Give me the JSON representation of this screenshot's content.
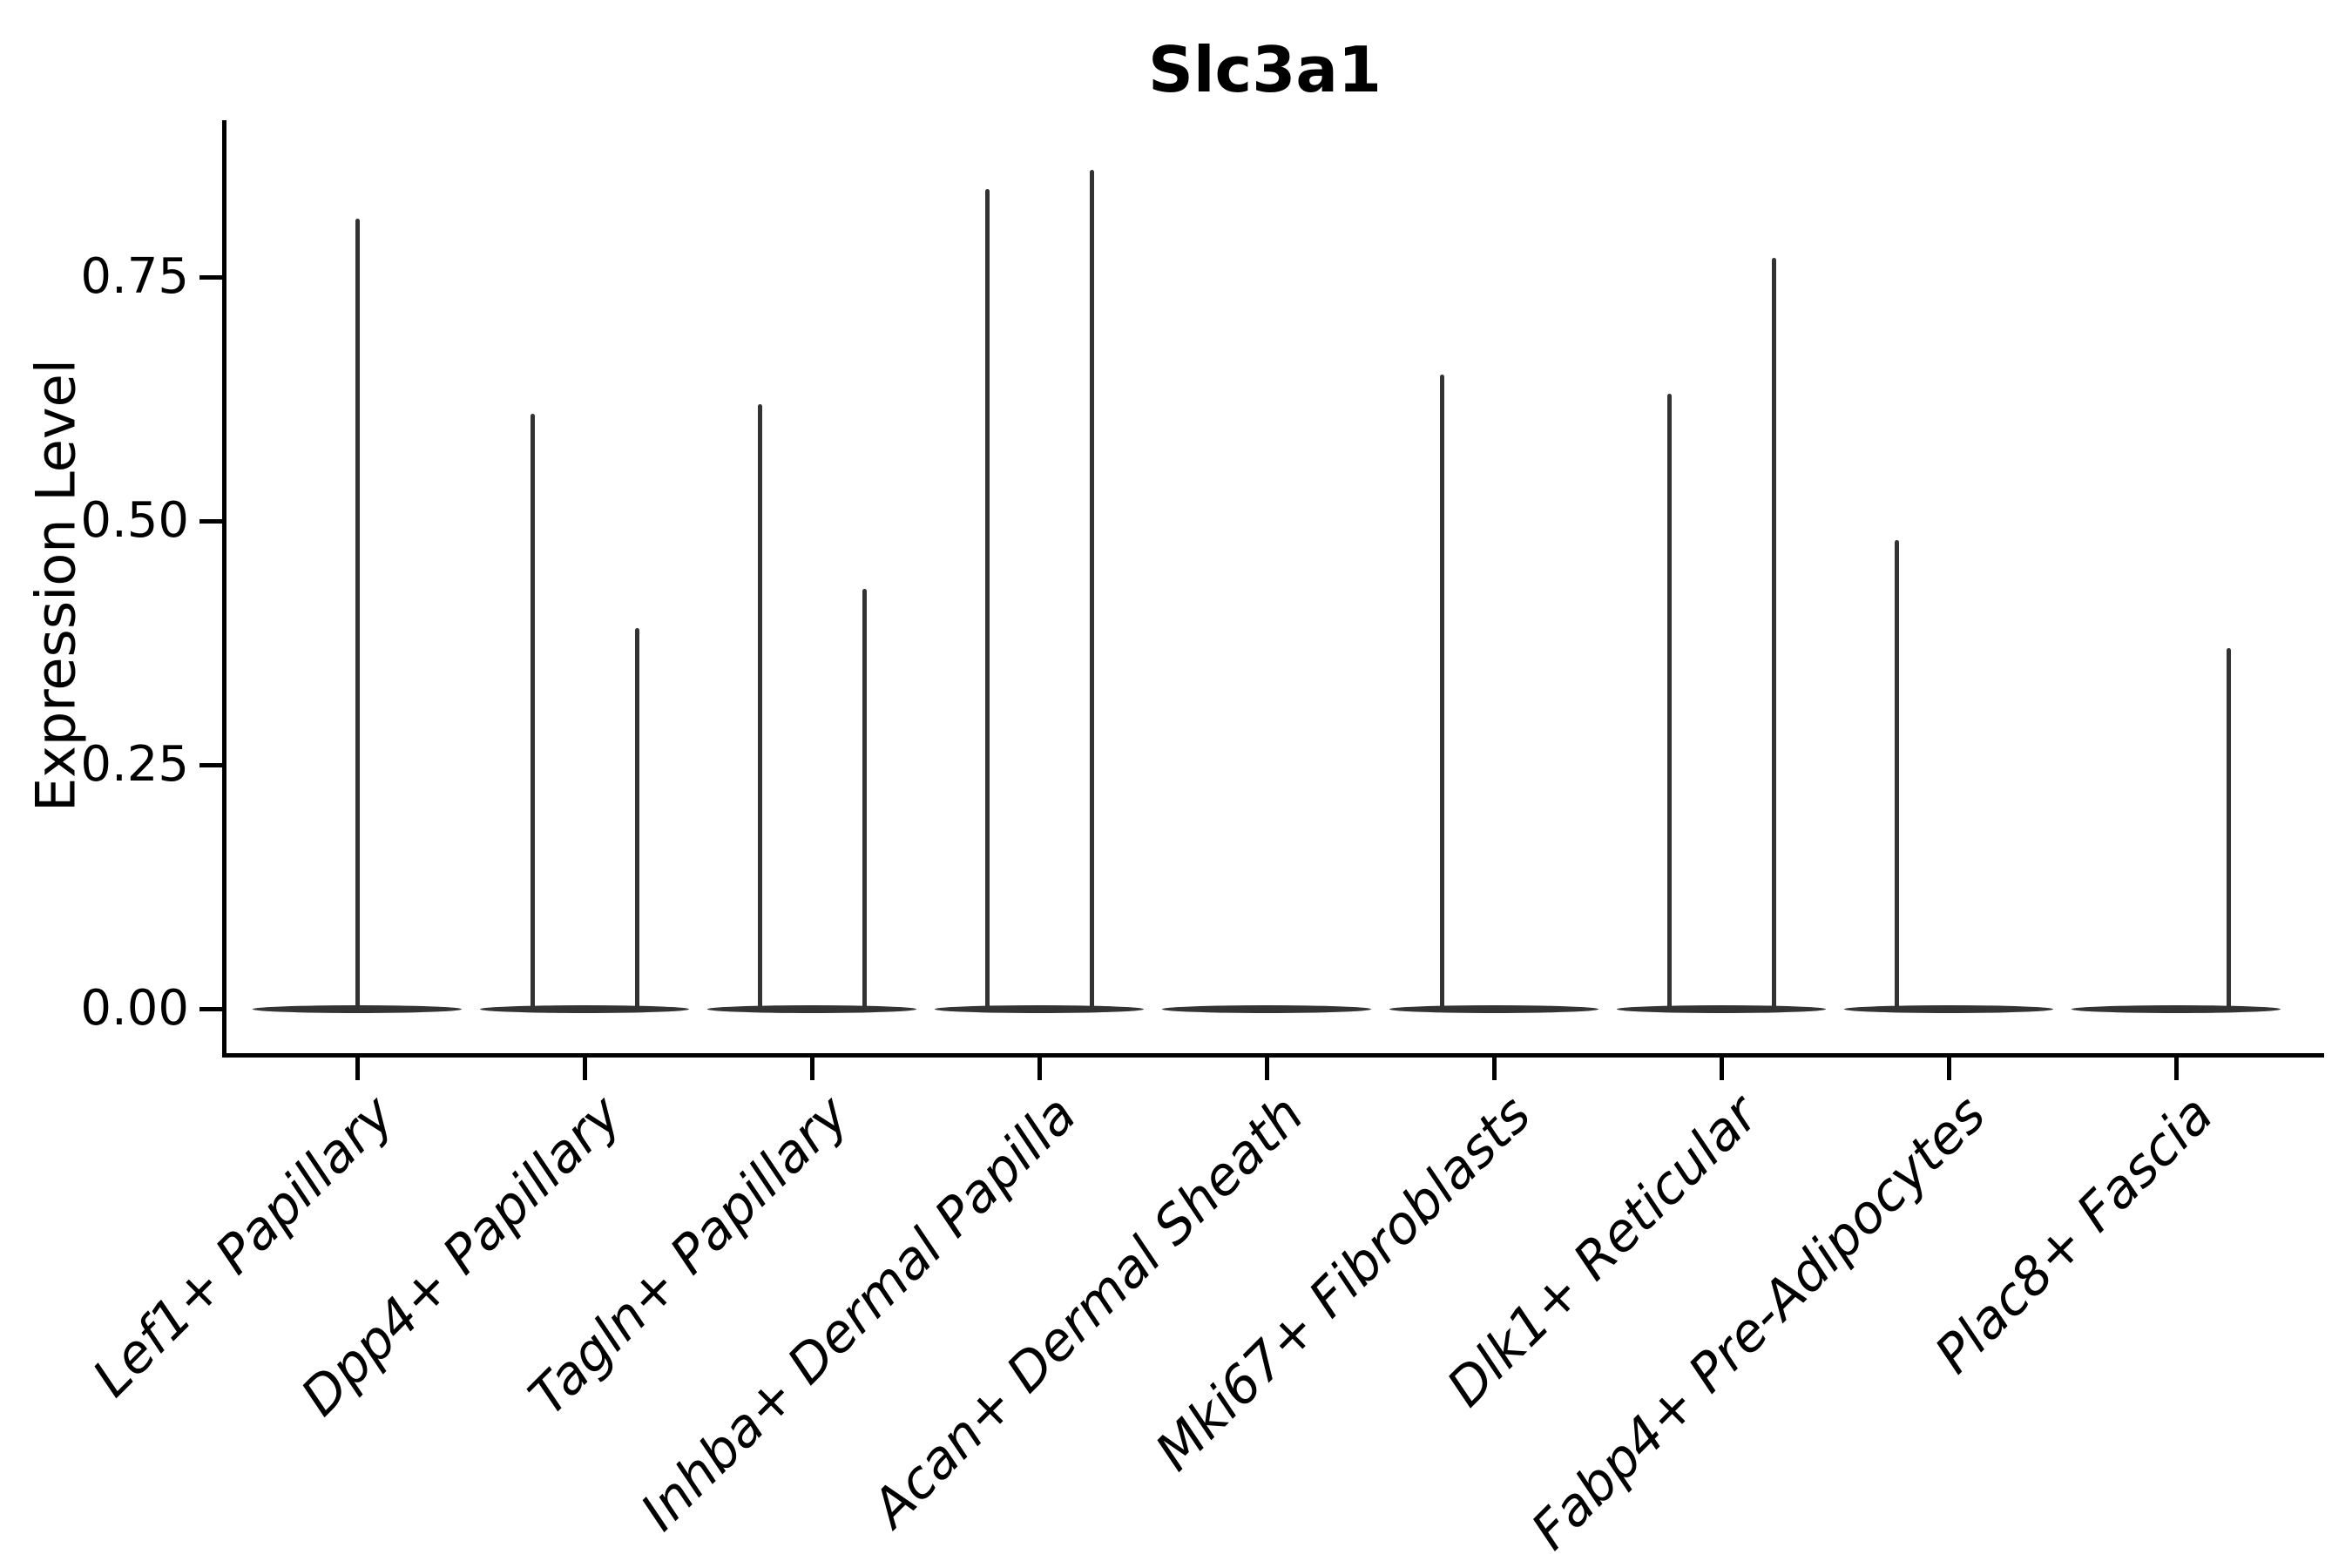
{
  "title": "Slc3a1",
  "axes": {
    "ylabel": "Expression Level",
    "ytick_labels": [
      "0.00",
      "0.25",
      "0.50",
      "0.75"
    ],
    "ytick_values": [
      0.0,
      0.25,
      0.5,
      0.75
    ]
  },
  "chart_data": {
    "type": "violin",
    "title": "Slc3a1",
    "xlabel": "",
    "ylabel": "Expression Level",
    "ylim": [
      -0.046,
      0.91
    ],
    "yticks": [
      0.0,
      0.25,
      0.5,
      0.75
    ],
    "grid": false,
    "legend": "none",
    "orientation": "vertical",
    "style_note": "sparse expression: each violin collapses to a flat bar at 0 with a thin density spike rising to the max expressed value",
    "categories": [
      "Lef1+ Papillary",
      "Dpp4+ Papillary",
      "Tagln+ Papillary",
      "Inhba+ Dermal Papilla",
      "Acan+ Dermal Sheath",
      "Mki67+ Fibroblasts",
      "Dlk1+ Reticular",
      "Fabp4+ Pre-Adipocytes",
      "Plac8+ Fascia"
    ],
    "violins": [
      {
        "category": "Lef1+ Papillary",
        "baseline": 0,
        "spikes": [
          {
            "slot": "center",
            "max": 0.81
          }
        ]
      },
      {
        "category": "Dpp4+ Papillary",
        "baseline": 0,
        "spikes": [
          {
            "slot": "left",
            "max": 0.61
          },
          {
            "slot": "right",
            "max": 0.39
          }
        ]
      },
      {
        "category": "Tagln+ Papillary",
        "baseline": 0,
        "spikes": [
          {
            "slot": "left",
            "max": 0.62
          },
          {
            "slot": "right",
            "max": 0.43
          }
        ]
      },
      {
        "category": "Inhba+ Dermal Papilla",
        "baseline": 0,
        "spikes": [
          {
            "slot": "left",
            "max": 0.84
          },
          {
            "slot": "right",
            "max": 0.86
          }
        ]
      },
      {
        "category": "Acan+ Dermal Sheath",
        "baseline": 0,
        "spikes": []
      },
      {
        "category": "Mki67+ Fibroblasts",
        "baseline": 0,
        "spikes": [
          {
            "slot": "left",
            "max": 0.65
          }
        ]
      },
      {
        "category": "Dlk1+ Reticular",
        "baseline": 0,
        "spikes": [
          {
            "slot": "left",
            "max": 0.63
          },
          {
            "slot": "right",
            "max": 0.77
          }
        ]
      },
      {
        "category": "Fabp4+ Pre-Adipocytes",
        "baseline": 0,
        "spikes": [
          {
            "slot": "left",
            "max": 0.48
          }
        ]
      },
      {
        "category": "Plac8+ Fascia",
        "baseline": 0,
        "spikes": [
          {
            "slot": "right",
            "max": 0.37
          }
        ]
      }
    ],
    "colors": {
      "violin": "#333333",
      "axis": "#000000",
      "text": "#000000",
      "background": "#ffffff"
    }
  }
}
